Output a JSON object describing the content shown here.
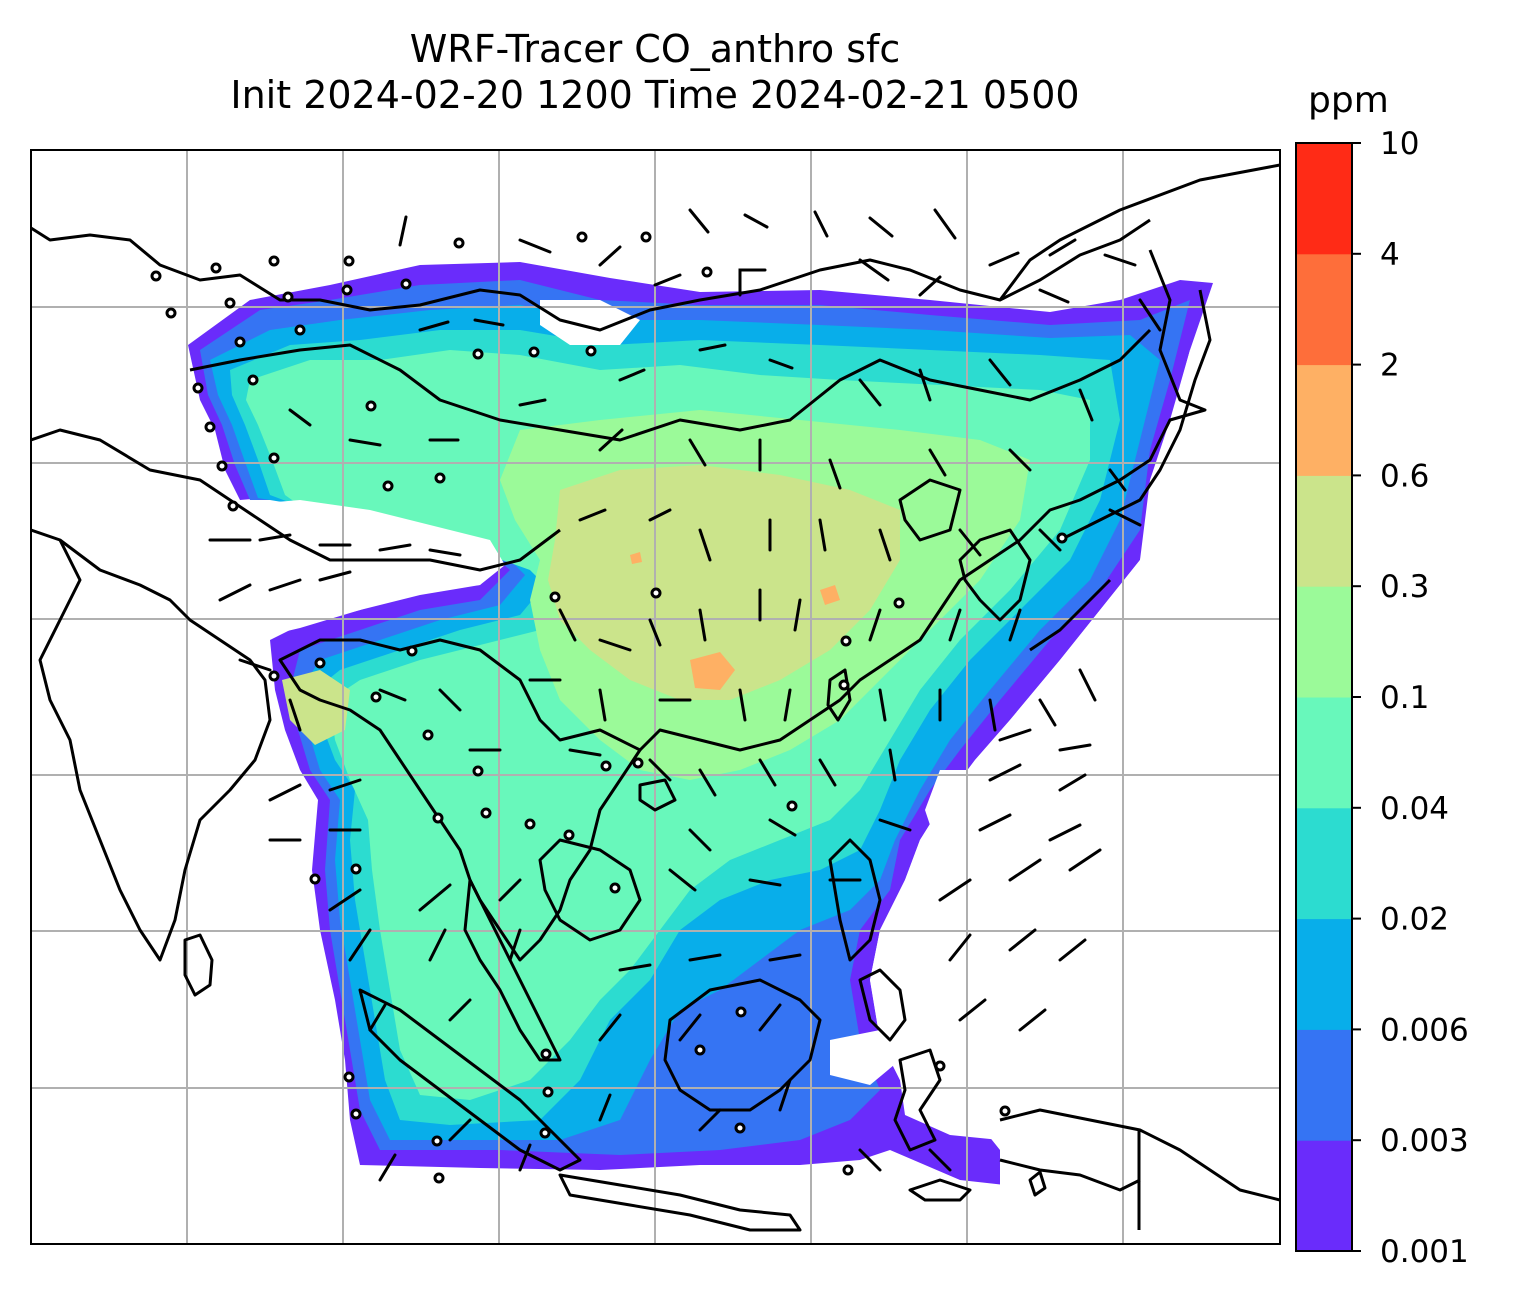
{
  "title": {
    "line1": "WRF-Tracer CO_anthro sfc",
    "line2": "Init 2024-02-20 1200 Time 2024-02-21 0500"
  },
  "colorbar": {
    "unit": "ppm",
    "levels": [
      "0.001",
      "0.003",
      "0.006",
      "0.02",
      "0.04",
      "0.1",
      "0.3",
      "0.6",
      "2",
      "4",
      "10"
    ],
    "colors": [
      "#6a2cfb",
      "#3574f3",
      "#08aeea",
      "#2cdcd0",
      "#68f8bb",
      "#9bfa99",
      "#cbe48b",
      "#feb064",
      "#fe6e3a",
      "#ff2b16"
    ]
  },
  "map": {
    "region": "East / Southeast Asia",
    "field": "CO_anthro surface concentration",
    "overlay": "wind barbs",
    "gridlines": true
  }
}
